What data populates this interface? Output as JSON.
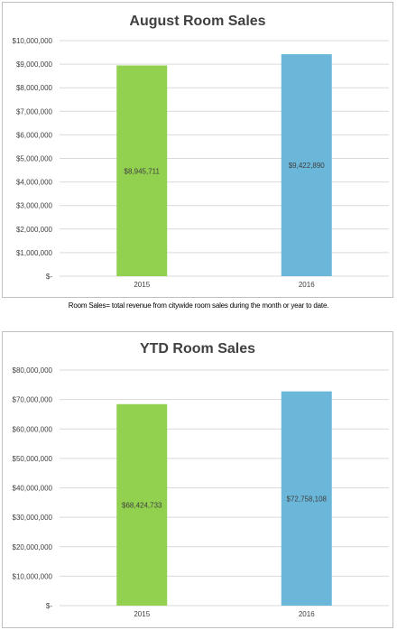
{
  "note": "Room Sales= total revenue from citywide room sales during the month or year to date.",
  "chart_data": [
    {
      "type": "bar",
      "title": "August Room Sales",
      "categories": [
        "2015",
        "2016"
      ],
      "values": [
        8945711,
        9422890
      ],
      "value_labels": [
        "$8,945,711",
        "$9,422,890"
      ],
      "colors": [
        "#92d050",
        "#6bb7d9"
      ],
      "ylim": [
        0,
        10000000
      ],
      "yticks": [
        {
          "value": 10000000,
          "label": "$10,000,000"
        },
        {
          "value": 9000000,
          "label": "$9,000,000"
        },
        {
          "value": 8000000,
          "label": "$8,000,000"
        },
        {
          "value": 7000000,
          "label": "$7,000,000"
        },
        {
          "value": 6000000,
          "label": "$6,000,000"
        },
        {
          "value": 5000000,
          "label": "$5,000,000"
        },
        {
          "value": 4000000,
          "label": "$4,000,000"
        },
        {
          "value": 3000000,
          "label": "$3,000,000"
        },
        {
          "value": 2000000,
          "label": "$2,000,000"
        },
        {
          "value": 1000000,
          "label": "$1,000,000"
        },
        {
          "value": 0,
          "label": "$-"
        }
      ],
      "grid": true
    },
    {
      "type": "bar",
      "title": "YTD Room Sales",
      "categories": [
        "2015",
        "2016"
      ],
      "values": [
        68424733,
        72758108
      ],
      "value_labels": [
        "$68,424,733",
        "$72,758,108"
      ],
      "colors": [
        "#92d050",
        "#6bb7d9"
      ],
      "ylim": [
        0,
        80000000
      ],
      "yticks": [
        {
          "value": 80000000,
          "label": "$80,000,000"
        },
        {
          "value": 70000000,
          "label": "$70,000,000"
        },
        {
          "value": 60000000,
          "label": "$60,000,000"
        },
        {
          "value": 50000000,
          "label": "$50,000,000"
        },
        {
          "value": 40000000,
          "label": "$40,000,000"
        },
        {
          "value": 30000000,
          "label": "$30,000,000"
        },
        {
          "value": 20000000,
          "label": "$20,000,000"
        },
        {
          "value": 10000000,
          "label": "$10,000,000"
        },
        {
          "value": 0,
          "label": "$-"
        }
      ],
      "grid": true
    }
  ]
}
